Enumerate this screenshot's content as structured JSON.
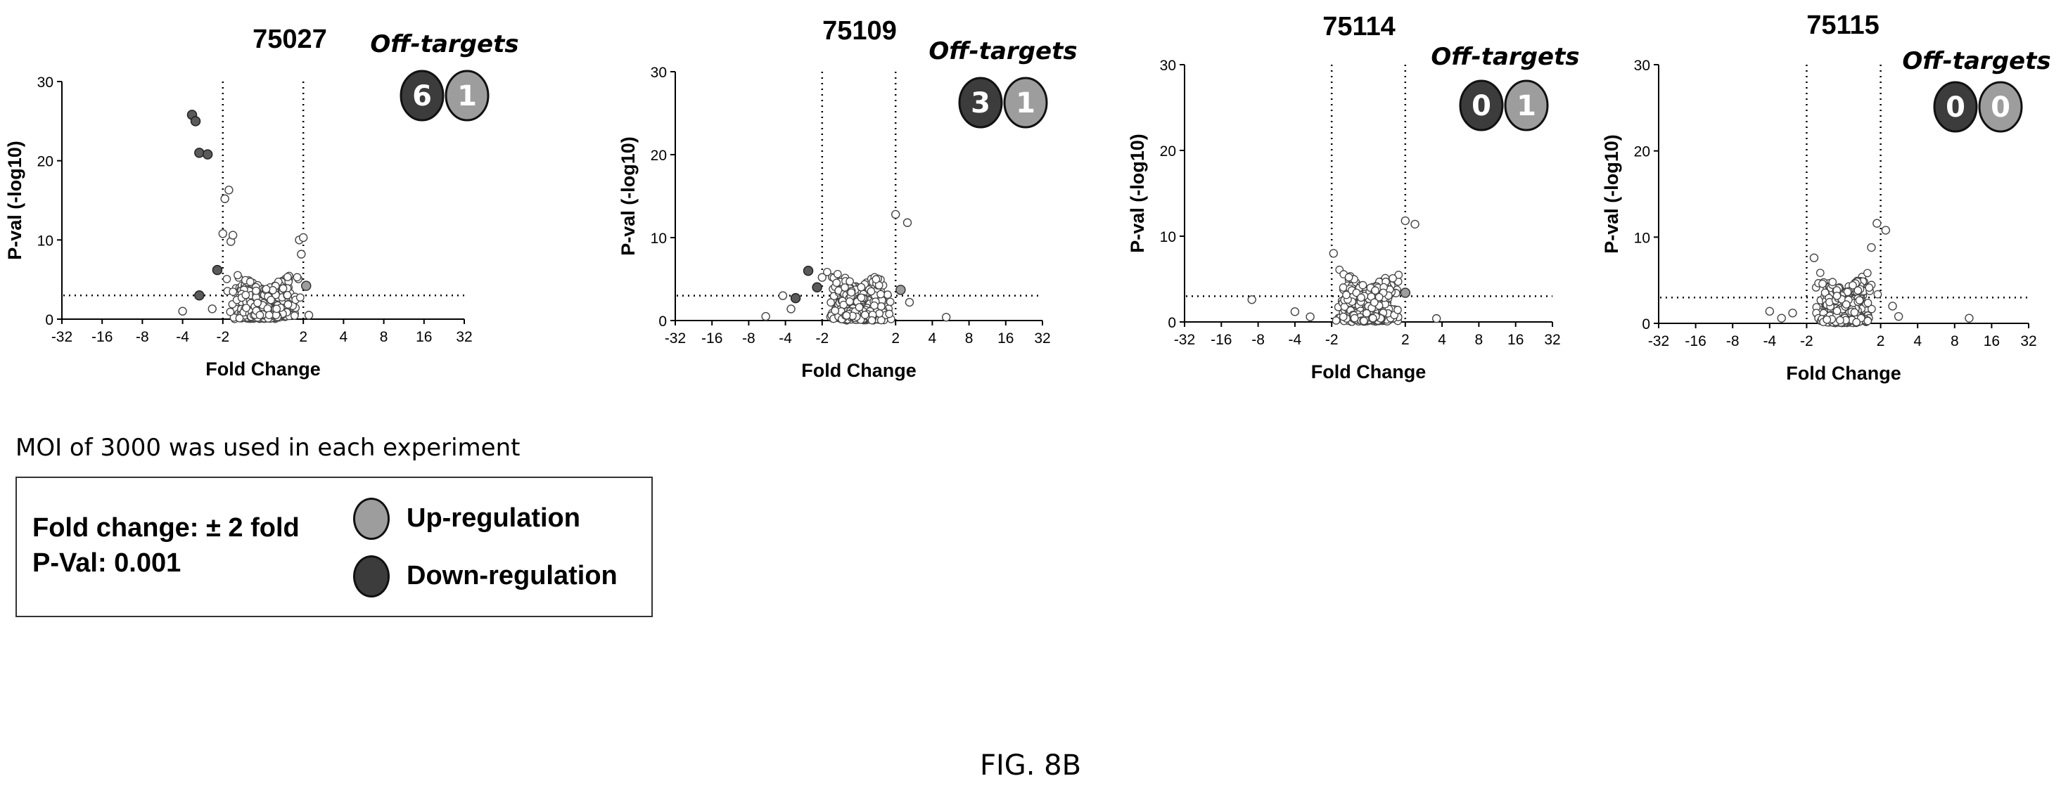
{
  "chart_data": [
    {
      "type": "scatter",
      "title": "75027",
      "xlabel": "Fold Change",
      "ylabel": "P-val (-log10)",
      "xticks": [
        "-32",
        "-16",
        "-8",
        "-4",
        "-2",
        "2",
        "4",
        "8",
        "16",
        "32"
      ],
      "yticks": [
        "0",
        "10",
        "20",
        "30"
      ],
      "ylim": [
        0,
        30
      ],
      "x_scale": "log2",
      "thresholds": {
        "fold_change": [
          -2,
          2
        ],
        "p_val": 3
      },
      "off_targets": {
        "down": 6,
        "up": 1
      },
      "highlight_down": [
        [
          -3.4,
          25.8
        ],
        [
          -3.2,
          25.0
        ],
        [
          -3.0,
          21.0
        ],
        [
          -2.6,
          20.8
        ],
        [
          -2.2,
          6.2
        ],
        [
          -3.0,
          3.0
        ]
      ],
      "highlight_up": [
        [
          2.1,
          4.2
        ]
      ],
      "outliers": [
        [
          -1.7,
          16.3
        ],
        [
          -1.9,
          15.2
        ],
        [
          -2.0,
          10.8
        ],
        [
          -1.6,
          9.8
        ],
        [
          -1.5,
          10.6
        ],
        [
          1.8,
          10.0
        ],
        [
          2.0,
          10.3
        ],
        [
          1.9,
          8.2
        ],
        [
          -2.4,
          1.3
        ],
        [
          -4.0,
          1.0
        ],
        [
          2.2,
          0.5
        ]
      ]
    },
    {
      "type": "scatter",
      "title": "75109",
      "xlabel": "Fold Change",
      "ylabel": "P-val (-log10)",
      "xticks": [
        "-32",
        "-16",
        "-8",
        "-4",
        "-2",
        "2",
        "4",
        "8",
        "16",
        "32"
      ],
      "yticks": [
        "0",
        "10",
        "20",
        "30"
      ],
      "ylim": [
        0,
        30
      ],
      "x_scale": "log2",
      "thresholds": {
        "fold_change": [
          -2,
          2
        ],
        "p_val": 3
      },
      "off_targets": {
        "down": 3,
        "up": 1
      },
      "highlight_down": [
        [
          -3.3,
          2.7
        ],
        [
          -2.6,
          6.0
        ],
        [
          -2.2,
          4.0
        ]
      ],
      "highlight_up": [
        [
          2.2,
          3.7
        ]
      ],
      "outliers": [
        [
          2.0,
          12.8
        ],
        [
          2.5,
          11.8
        ],
        [
          -2.0,
          5.2
        ],
        [
          -4.2,
          3.0
        ],
        [
          -5.8,
          0.5
        ],
        [
          -3.6,
          1.4
        ],
        [
          5.2,
          0.4
        ],
        [
          2.6,
          2.2
        ]
      ]
    },
    {
      "type": "scatter",
      "title": "75114",
      "xlabel": "Fold Change",
      "ylabel": "P-val (-log10)",
      "xticks": [
        "-32",
        "-16",
        "-8",
        "-4",
        "-2",
        "2",
        "4",
        "8",
        "16",
        "32"
      ],
      "yticks": [
        "0",
        "10",
        "20",
        "30"
      ],
      "ylim": [
        0,
        30
      ],
      "x_scale": "log2",
      "thresholds": {
        "fold_change": [
          -2,
          2
        ],
        "p_val": 3
      },
      "off_targets": {
        "down": 0,
        "up": 1
      },
      "highlight_down": [],
      "highlight_up": [
        [
          2.0,
          3.4
        ]
      ],
      "outliers": [
        [
          2.0,
          11.8
        ],
        [
          2.4,
          11.4
        ],
        [
          -1.9,
          8.0
        ],
        [
          -9.0,
          2.6
        ],
        [
          -4.0,
          1.2
        ],
        [
          3.6,
          0.4
        ],
        [
          -3.0,
          0.6
        ]
      ]
    },
    {
      "type": "scatter",
      "title": "75115",
      "xlabel": "Fold Change",
      "ylabel": "P-val (-log10)",
      "xticks": [
        "-32",
        "-16",
        "-8",
        "-4",
        "-2",
        "2",
        "4",
        "8",
        "16",
        "32"
      ],
      "yticks": [
        "0",
        "10",
        "20",
        "30"
      ],
      "ylim": [
        0,
        30
      ],
      "x_scale": "log2",
      "thresholds": {
        "fold_change": [
          -2,
          2
        ],
        "p_val": 3
      },
      "off_targets": {
        "down": 0,
        "up": 0
      },
      "highlight_down": [],
      "highlight_up": [],
      "outliers": [
        [
          1.8,
          11.6
        ],
        [
          2.2,
          10.8
        ],
        [
          1.5,
          8.8
        ],
        [
          -1.6,
          7.6
        ],
        [
          10.5,
          0.6
        ],
        [
          -4.0,
          1.4
        ],
        [
          -3.2,
          0.6
        ],
        [
          -2.6,
          1.2
        ],
        [
          2.5,
          2.0
        ],
        [
          2.8,
          0.8
        ]
      ]
    }
  ],
  "off_targets_label": "Off-targets",
  "note": "MOI of 3000 was used in each experiment",
  "legend": {
    "fold_change_label": "Fold change:",
    "fold_change_value": "± 2 fold",
    "pval_label": "P-Val:",
    "pval_value": "0.001",
    "up_label": "Up-regulation",
    "down_label": "Down-regulation"
  },
  "colors": {
    "up": "#9d9d9d",
    "down": "#3c3c3c",
    "point_fill": "#ffffff",
    "point_stroke": "#444444"
  },
  "figure_caption": "FIG. 8B"
}
